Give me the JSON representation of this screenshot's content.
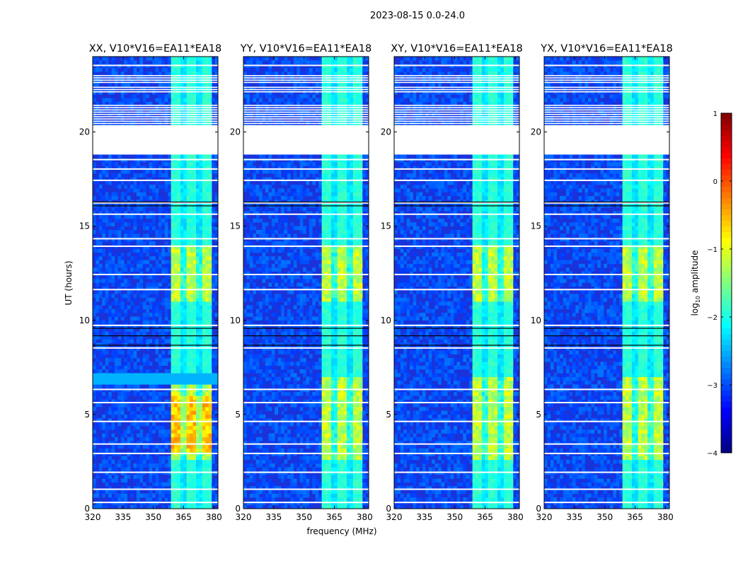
{
  "figure": {
    "suptitle": "2023-08-15 0.0-24.0",
    "xlabel": "frequency (MHz)",
    "ylabel": "UT (hours)"
  },
  "chart_data": {
    "type": "heatmap",
    "x_range": [
      320,
      382
    ],
    "y_range": [
      0,
      24
    ],
    "x_ticks": [
      320,
      335,
      350,
      365,
      380
    ],
    "y_ticks": [
      0,
      5,
      10,
      15,
      20
    ],
    "rfi_band_mhz": [
      359,
      379
    ],
    "flagged_row_blocks_ut": [
      [
        20.3,
        21.5
      ],
      [
        22.1,
        22.4
      ],
      [
        22.6,
        23.0
      ]
    ],
    "data_gap_ut": [
      [
        18.8,
        20.3
      ]
    ],
    "panels": [
      {
        "title": "XX, V10*V16=EA11*EA18",
        "x": [
          320,
          382
        ],
        "y": [
          0,
          24
        ]
      },
      {
        "title": "YY, V10*V16=EA11*EA18",
        "x": [
          320,
          382
        ],
        "y": [
          0,
          24
        ]
      },
      {
        "title": "XY, V10*V16=EA11*EA18",
        "x": [
          320,
          382
        ],
        "y": [
          0,
          24
        ]
      },
      {
        "title": "YX, V10*V16=EA11*EA18",
        "x": [
          320,
          382
        ],
        "y": [
          0,
          24
        ]
      }
    ],
    "colorbar": {
      "label_prefix": "log",
      "label_sub": "10",
      "label_suffix": " amplitude",
      "range": [
        -4,
        1
      ],
      "ticks": [
        {
          "value": 1,
          "label": "1"
        },
        {
          "value": 0,
          "label": "0"
        },
        {
          "value": -1,
          "label": "−1"
        },
        {
          "value": -2,
          "label": "−2"
        },
        {
          "value": -3,
          "label": "−3"
        },
        {
          "value": -4,
          "label": "−4"
        }
      ],
      "colormap": "jet"
    }
  }
}
